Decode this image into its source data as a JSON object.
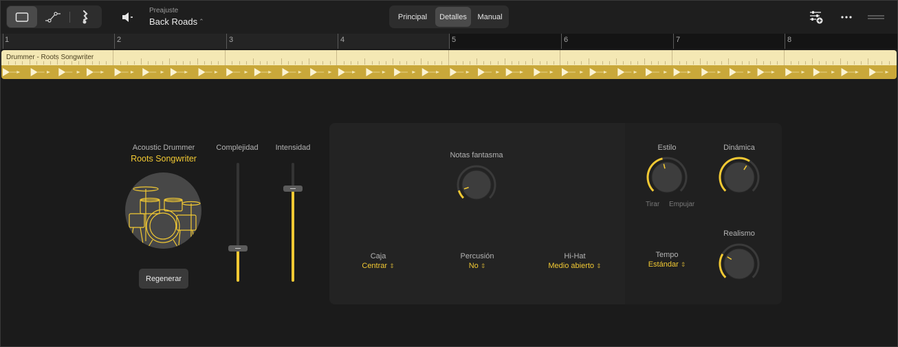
{
  "toolbar": {
    "view_buttons": [
      "region-view-icon",
      "automation-icon",
      "score-icon"
    ],
    "speaker_icon": "speaker-icon",
    "preset_label": "Preajuste",
    "preset_value": "Back Roads",
    "tabs": [
      {
        "label": "Principal",
        "active": false
      },
      {
        "label": "Detalles",
        "active": true
      },
      {
        "label": "Manual",
        "active": false
      }
    ],
    "right_icons": [
      "mixer-add-icon",
      "more-icon",
      "drag-handle-icon"
    ]
  },
  "ruler": {
    "bars": [
      "1",
      "2",
      "3",
      "4",
      "5",
      "6",
      "7",
      "8"
    ]
  },
  "region": {
    "name": "Drummer - Roots Songwriter"
  },
  "drummer": {
    "kit_label": "Acoustic Drummer",
    "name": "Roots Songwriter",
    "regen_label": "Regenerar",
    "sliders": [
      {
        "label": "Complejidad",
        "value_fraction": 0.28
      },
      {
        "label": "Intensidad",
        "value_fraction": 0.78
      }
    ]
  },
  "details": {
    "ghost_notes": {
      "label": "Notas fantasma",
      "value_fraction": 0.1
    },
    "dropdowns": {
      "snare": {
        "label": "Caja",
        "value": "Centrar"
      },
      "percussion": {
        "label": "Percusión",
        "value": "No"
      },
      "hihat": {
        "label": "Hi-Hat",
        "value": "Medio abierto"
      }
    },
    "style": {
      "label": "Estilo",
      "value_fraction": 0.45,
      "min_label": "Tirar",
      "max_label": "Empujar"
    },
    "dynamics": {
      "label": "Dinámica",
      "value_fraction": 0.62
    },
    "realism": {
      "label": "Realismo",
      "value_fraction": 0.28
    },
    "tempo": {
      "label": "Tempo",
      "value": "Estándar"
    }
  },
  "colors": {
    "accent": "#f2c933",
    "region_header": "#f4e8b4",
    "region_body": "#c9a83a",
    "background": "#1b1b1b"
  }
}
